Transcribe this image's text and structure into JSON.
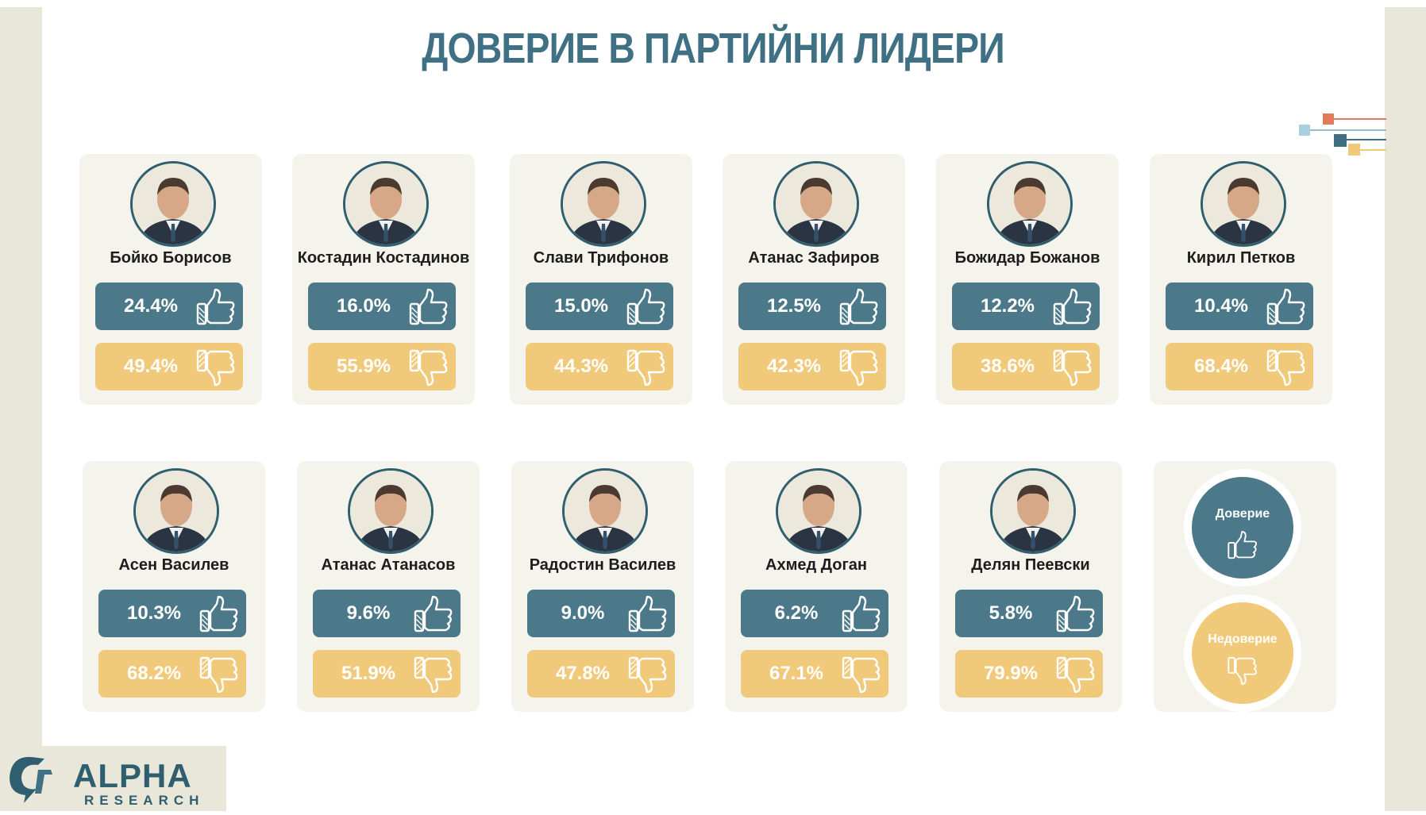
{
  "title": "ДОВЕРИЕ В ПАРТИЙНИ ЛИДЕРИ",
  "colors": {
    "trust": "#4b7989",
    "distrust": "#f1c97a",
    "title": "#3f7084",
    "card": "#f4f3ec",
    "frame": "#e8e7d9"
  },
  "icons": {
    "trust": "thumbs-up-icon",
    "distrust": "thumbs-down-icon"
  },
  "legend": {
    "trust_label": "Доверие",
    "distrust_label": "Недоверие"
  },
  "logo": {
    "main": "ALPHA",
    "sub": "RESEARCH"
  },
  "chart_data": {
    "type": "table",
    "columns": [
      "Доверие",
      "Недоверие"
    ],
    "leaders": [
      {
        "name": "Бойко Борисов",
        "trust": "24.4%",
        "distrust": "49.4%"
      },
      {
        "name": "Костадин Костадинов",
        "trust": "16.0%",
        "distrust": "55.9%"
      },
      {
        "name": "Слави Трифонов",
        "trust": "15.0%",
        "distrust": "44.3%"
      },
      {
        "name": "Атанас Зафиров",
        "trust": "12.5%",
        "distrust": "42.3%"
      },
      {
        "name": "Божидар Божанов",
        "trust": "12.2%",
        "distrust": "38.6%"
      },
      {
        "name": "Кирил Петков",
        "trust": "10.4%",
        "distrust": "68.4%"
      },
      {
        "name": "Асен Василев",
        "trust": "10.3%",
        "distrust": "68.2%"
      },
      {
        "name": "Атанас Атанасов",
        "trust": "9.6%",
        "distrust": "51.9%"
      },
      {
        "name": "Радостин Василев",
        "trust": "9.0%",
        "distrust": "47.8%"
      },
      {
        "name": "Ахмед Доган",
        "trust": "6.2%",
        "distrust": "67.1%"
      },
      {
        "name": "Делян Пеевски",
        "trust": "5.8%",
        "distrust": "79.9%"
      }
    ]
  }
}
